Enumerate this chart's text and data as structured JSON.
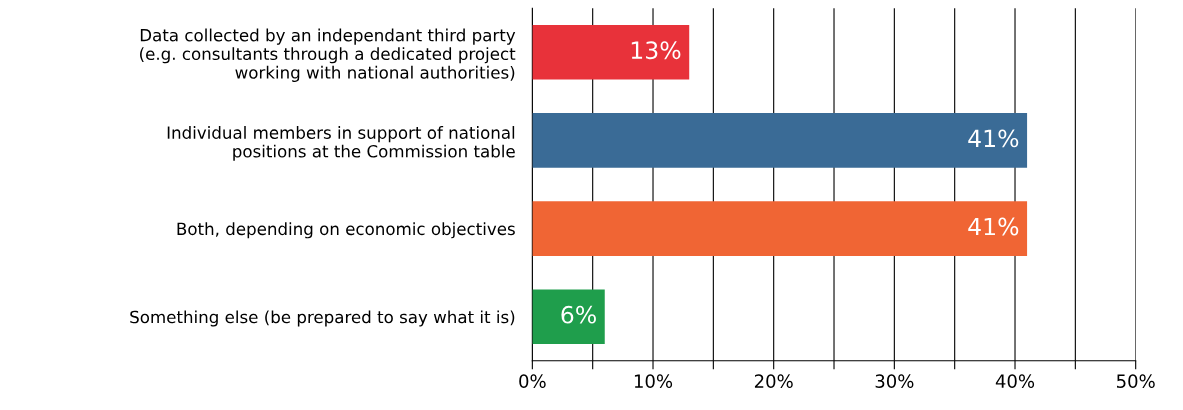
{
  "chart_data": {
    "type": "bar",
    "orientation": "horizontal",
    "categories": [
      "Data collected by an independant third party\n(e.g. consultants through a dedicated project\nworking with national authorities)",
      "Individual members in support of national\npositions at the Commission table",
      "Both, depending on economic objectives",
      "Something else (be prepared to say what it is)"
    ],
    "values": [
      13,
      41,
      41,
      6
    ],
    "colors": [
      "#e8323a",
      "#3a6b96",
      "#f06534",
      "#1f9e4c"
    ],
    "value_labels": [
      "13%",
      "41%",
      "41%",
      "6%"
    ],
    "xlim": [
      0,
      50
    ],
    "xticks": [
      {
        "value": 0,
        "label": "0%"
      },
      {
        "value": 5,
        "label": null
      },
      {
        "value": 10,
        "label": "10%"
      },
      {
        "value": 15,
        "label": null
      },
      {
        "value": 20,
        "label": "20%"
      },
      {
        "value": 25,
        "label": null
      },
      {
        "value": 30,
        "label": "30%"
      },
      {
        "value": 35,
        "label": null
      },
      {
        "value": 40,
        "label": "40%"
      },
      {
        "value": 45,
        "label": null
      },
      {
        "value": 50,
        "label": "50%"
      }
    ],
    "grid": "x"
  }
}
